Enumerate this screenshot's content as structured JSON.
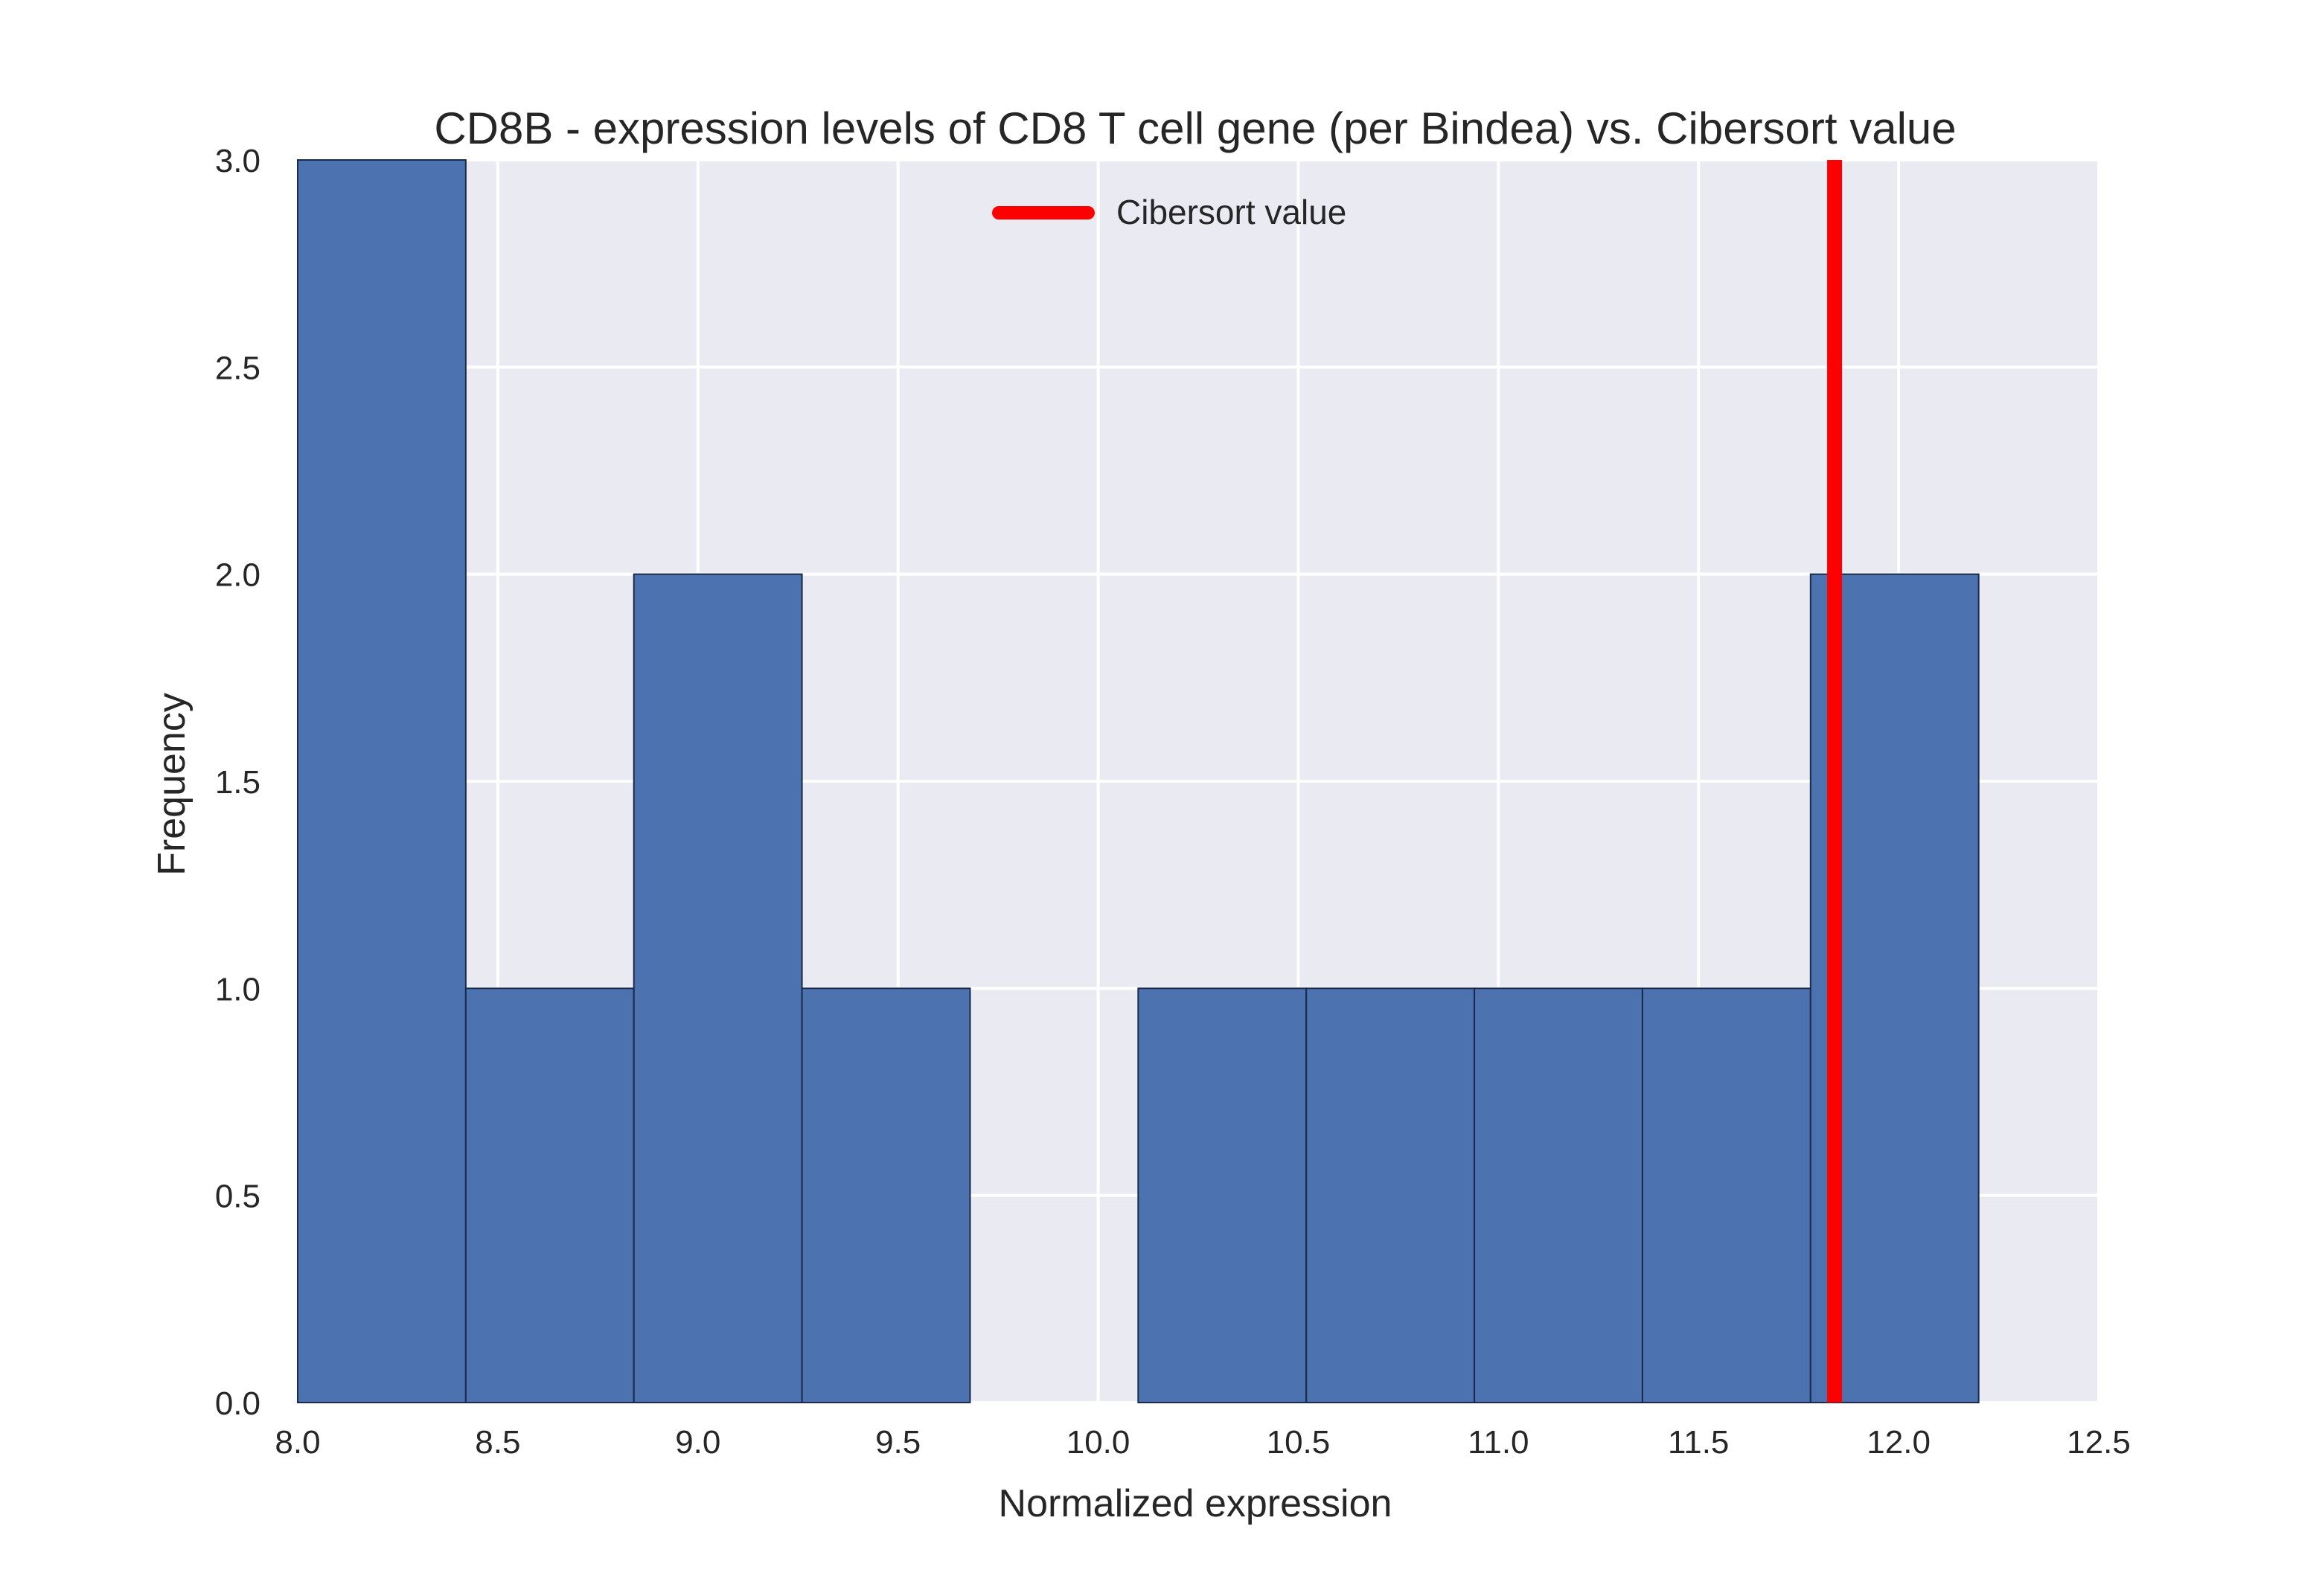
{
  "chart_data": {
    "type": "bar",
    "title": "CD8B - expression levels of CD8 T cell gene (per Bindea) vs. Cibersort value",
    "xlabel": "Normalized expression",
    "ylabel": "Frequency",
    "xlim": [
      8.0,
      12.5
    ],
    "ylim": [
      0.0,
      3.0
    ],
    "xticks": [
      "8.0",
      "8.5",
      "9.0",
      "9.5",
      "10.0",
      "10.5",
      "11.0",
      "11.5",
      "12.0",
      "12.5"
    ],
    "yticks": [
      "0.0",
      "0.5",
      "1.0",
      "1.5",
      "2.0",
      "2.5",
      "3.0"
    ],
    "grid": true,
    "bins": [
      {
        "x0": 8.0,
        "x1": 8.42,
        "count": 3
      },
      {
        "x0": 8.42,
        "x1": 8.84,
        "count": 1
      },
      {
        "x0": 8.84,
        "x1": 9.26,
        "count": 2
      },
      {
        "x0": 9.26,
        "x1": 9.68,
        "count": 1
      },
      {
        "x0": 9.68,
        "x1": 10.1,
        "count": 0
      },
      {
        "x0": 10.1,
        "x1": 10.52,
        "count": 1
      },
      {
        "x0": 10.52,
        "x1": 10.94,
        "count": 1
      },
      {
        "x0": 10.94,
        "x1": 11.36,
        "count": 1
      },
      {
        "x0": 11.36,
        "x1": 11.78,
        "count": 1
      },
      {
        "x0": 11.78,
        "x1": 12.2,
        "count": 2
      }
    ],
    "series": [
      {
        "name": "Cibersort value",
        "type": "vline",
        "x": 11.84,
        "color": "#ff0000"
      }
    ],
    "legend_position": "top-center",
    "colors": {
      "bar": "#4c72b0",
      "bar_edge": "#1a2a4a",
      "background": "#eaeaf2",
      "grid": "#ffffff",
      "vline": "#ff0000"
    }
  }
}
